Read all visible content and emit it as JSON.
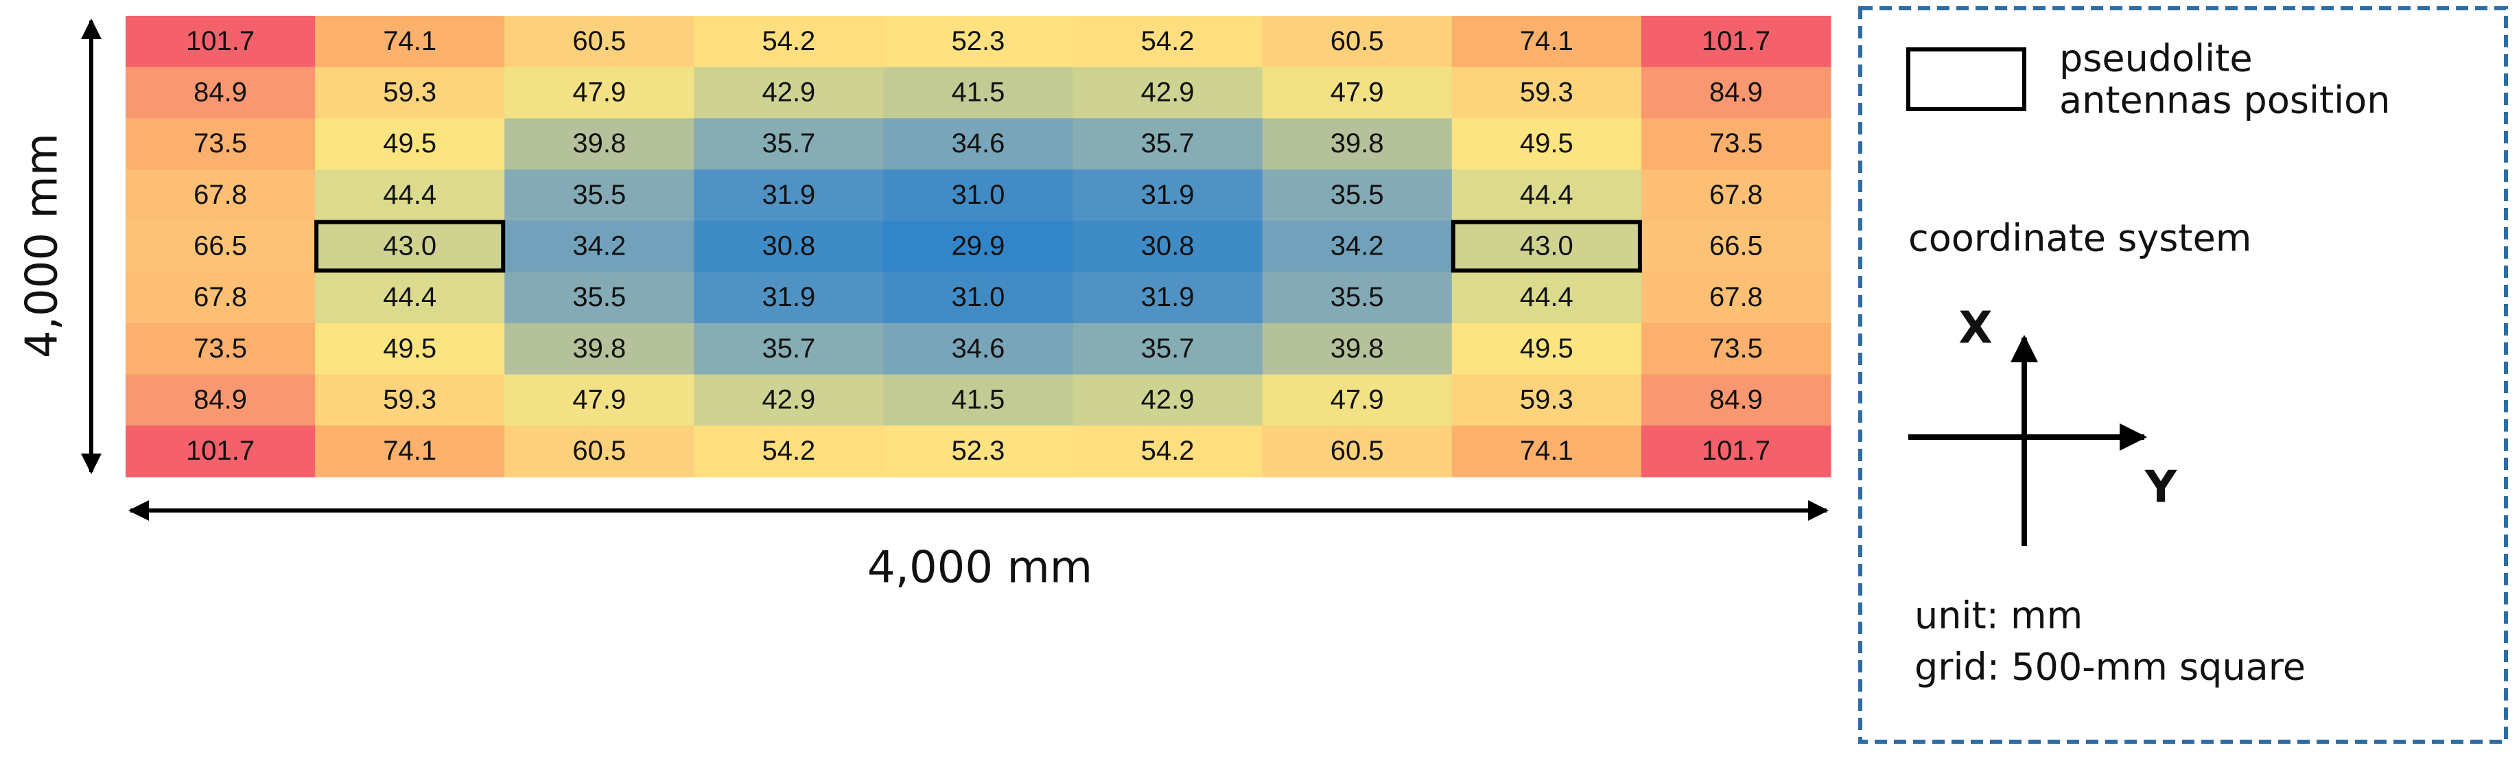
{
  "heatmap": {
    "rows": [
      [
        101.7,
        74.1,
        60.5,
        54.2,
        52.3,
        54.2,
        60.5,
        74.1,
        101.7
      ],
      [
        84.9,
        59.3,
        47.9,
        42.9,
        41.5,
        42.9,
        47.9,
        59.3,
        84.9
      ],
      [
        73.5,
        49.5,
        39.8,
        35.7,
        34.6,
        35.7,
        39.8,
        49.5,
        73.5
      ],
      [
        67.8,
        44.4,
        35.5,
        31.9,
        31.0,
        31.9,
        35.5,
        44.4,
        67.8
      ],
      [
        66.5,
        43.0,
        34.2,
        30.8,
        29.9,
        30.8,
        34.2,
        43.0,
        66.5
      ],
      [
        67.8,
        44.4,
        35.5,
        31.9,
        31.0,
        31.9,
        35.5,
        44.4,
        67.8
      ],
      [
        73.5,
        49.5,
        39.8,
        35.7,
        34.6,
        35.7,
        39.8,
        49.5,
        73.5
      ],
      [
        84.9,
        59.3,
        47.9,
        42.9,
        41.5,
        42.9,
        47.9,
        59.3,
        84.9
      ],
      [
        101.7,
        74.1,
        60.5,
        54.2,
        52.3,
        54.2,
        60.5,
        74.1,
        101.7
      ]
    ],
    "value_labels": [
      [
        "101.7",
        "74.1",
        "60.5",
        "54.2",
        "52.3",
        "54.2",
        "60.5",
        "74.1",
        "101.7"
      ],
      [
        "84.9",
        "59.3",
        "47.9",
        "42.9",
        "41.5",
        "42.9",
        "47.9",
        "59.3",
        "84.9"
      ],
      [
        "73.5",
        "49.5",
        "39.8",
        "35.7",
        "34.6",
        "35.7",
        "39.8",
        "49.5",
        "73.5"
      ],
      [
        "67.8",
        "44.4",
        "35.5",
        "31.9",
        "31.0",
        "31.9",
        "35.5",
        "44.4",
        "67.8"
      ],
      [
        "66.5",
        "43.0",
        "34.2",
        "30.8",
        "29.9",
        "30.8",
        "34.2",
        "43.0",
        "66.5"
      ],
      [
        "67.8",
        "44.4",
        "35.5",
        "31.9",
        "31.0",
        "31.9",
        "35.5",
        "44.4",
        "67.8"
      ],
      [
        "73.5",
        "49.5",
        "39.8",
        "35.7",
        "34.6",
        "35.7",
        "39.8",
        "49.5",
        "73.5"
      ],
      [
        "84.9",
        "59.3",
        "47.9",
        "42.9",
        "41.5",
        "42.9",
        "47.9",
        "59.3",
        "84.9"
      ],
      [
        "101.7",
        "74.1",
        "60.5",
        "54.2",
        "52.3",
        "54.2",
        "60.5",
        "74.1",
        "101.7"
      ]
    ]
  },
  "dimensions": {
    "height_label": "4,000 mm",
    "width_label": "4,000 mm"
  },
  "legend": {
    "antenna_label": [
      "pseudolite",
      "antennas position"
    ],
    "coordinate_label": "coordinate system",
    "x_axis": "X",
    "y_axis": "Y",
    "unit": "unit: mm",
    "grid": "grid: 500-mm square"
  }
}
